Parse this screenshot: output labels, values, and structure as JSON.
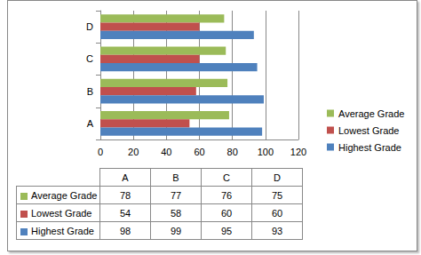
{
  "chart_data": {
    "type": "bar",
    "orientation": "horizontal",
    "categories": [
      "A",
      "B",
      "C",
      "D"
    ],
    "series": [
      {
        "name": "Average Grade",
        "color": "#9bbb59",
        "values": [
          78,
          77,
          76,
          75
        ]
      },
      {
        "name": "Lowest Grade",
        "color": "#c0504d",
        "values": [
          54,
          58,
          60,
          60
        ]
      },
      {
        "name": "Highest Grade",
        "color": "#4f81bd",
        "values": [
          98,
          99,
          95,
          93
        ]
      }
    ],
    "xlim": [
      0,
      120
    ],
    "xticks": [
      0,
      20,
      40,
      60,
      80,
      100,
      120
    ],
    "grid": true,
    "legend": "right"
  }
}
